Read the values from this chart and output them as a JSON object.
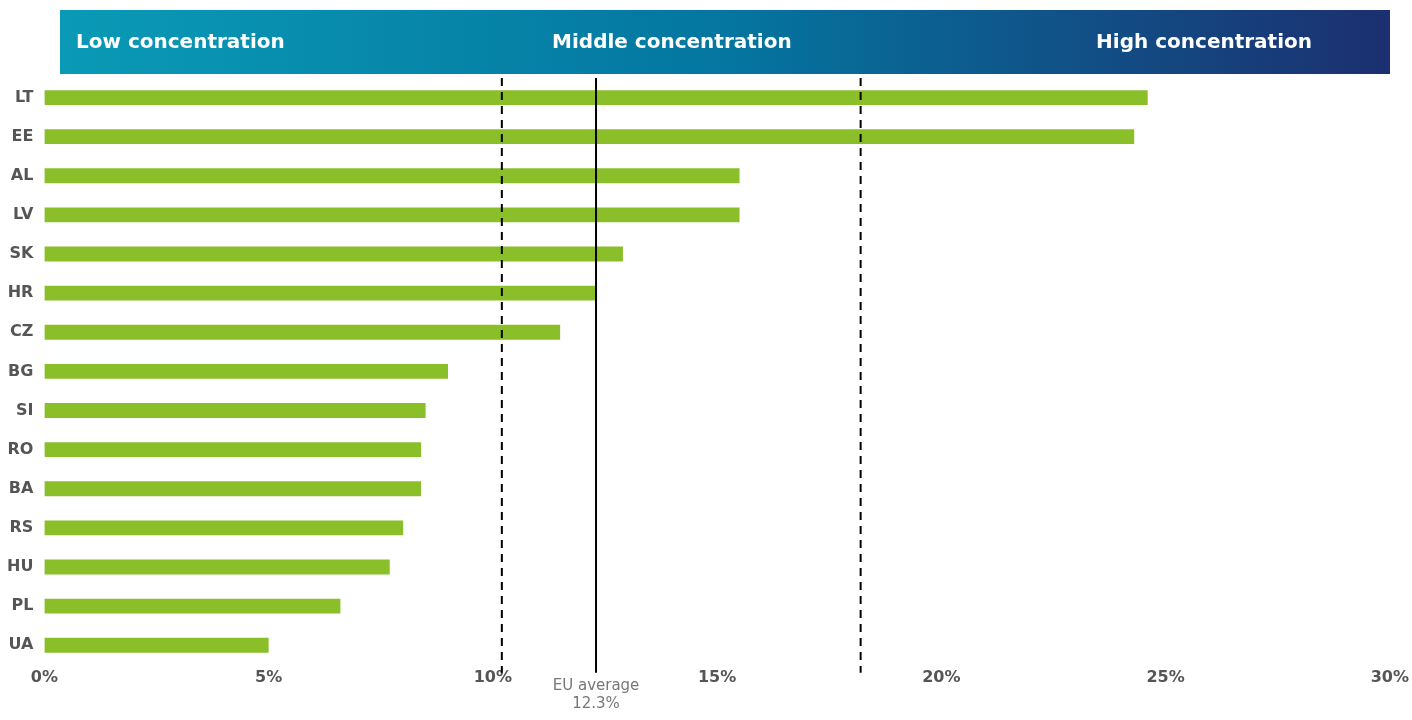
{
  "chart_data": {
    "type": "bar",
    "orientation": "horizontal",
    "categories": [
      "LT",
      "EE",
      "AL",
      "LV",
      "SK",
      "HR",
      "CZ",
      "BG",
      "SI",
      "RO",
      "BA",
      "RS",
      "HU",
      "PL",
      "UA"
    ],
    "values": [
      24.6,
      24.3,
      15.5,
      15.5,
      12.9,
      12.3,
      11.5,
      9.0,
      8.5,
      8.4,
      8.4,
      8.0,
      7.7,
      6.6,
      5.0
    ],
    "color": "#8abf2a",
    "xlim": [
      0,
      30
    ],
    "xticks": [
      {
        "value": 0,
        "label": "0%"
      },
      {
        "value": 5,
        "label": "5%"
      },
      {
        "value": 10,
        "label": "10%"
      },
      {
        "value": 15,
        "label": "15%"
      },
      {
        "value": 20,
        "label": "20%"
      },
      {
        "value": 25,
        "label": "25%"
      },
      {
        "value": 30,
        "label": "30%"
      }
    ],
    "grid": false,
    "legend": false,
    "ref_lines": [
      {
        "axis": "x",
        "value": 10.2,
        "line_style": "dashed",
        "color": "#000000"
      },
      {
        "axis": "x",
        "value": 12.3,
        "label": "EU average\n12.3%",
        "line_style": "solid",
        "color": "#000000"
      },
      {
        "axis": "x",
        "value": 18.2,
        "line_style": "dashed",
        "color": "#000000"
      }
    ],
    "annotations": [
      "Low concentration",
      "Middle concentration",
      "High concentration"
    ]
  }
}
